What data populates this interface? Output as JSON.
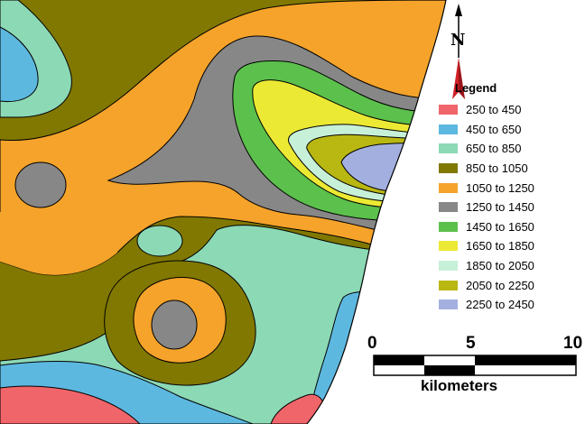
{
  "colors": {
    "c250": "#f0656a",
    "c450": "#5db8e0",
    "c650": "#8cd9b5",
    "c850": "#807800",
    "c1050": "#f5a32a",
    "c1250": "#878787",
    "c1450": "#5cc04c",
    "c1650": "#ece934",
    "c1850": "#c7f0d8",
    "c2050": "#b9b712",
    "c2250": "#a3b0df",
    "north_arrow": "#d32026",
    "coast": "#ffffff"
  },
  "north_arrow": {
    "letter": "N",
    "icon": "north-arrow-icon"
  },
  "legend": {
    "title": "Legend",
    "items": [
      {
        "label": "250 to 450",
        "color": "#f0656a"
      },
      {
        "label": "450 to 650",
        "color": "#5db8e0"
      },
      {
        "label": "650 to 850",
        "color": "#8cd9b5"
      },
      {
        "label": "850 to 1050",
        "color": "#807800"
      },
      {
        "label": "1050 to 1250",
        "color": "#f5a32a"
      },
      {
        "label": "1250 to 1450",
        "color": "#878787"
      },
      {
        "label": "1450 to 1650",
        "color": "#5cc04c"
      },
      {
        "label": "1650 to 1850",
        "color": "#ece934"
      },
      {
        "label": "1850 to 2050",
        "color": "#c7f0d8"
      },
      {
        "label": "2050 to 2250",
        "color": "#b9b712"
      },
      {
        "label": "2250 to 2450",
        "color": "#a3b0df"
      }
    ]
  },
  "scale": {
    "ticks": [
      "0",
      "5",
      "10"
    ],
    "unit": "kilometers"
  }
}
